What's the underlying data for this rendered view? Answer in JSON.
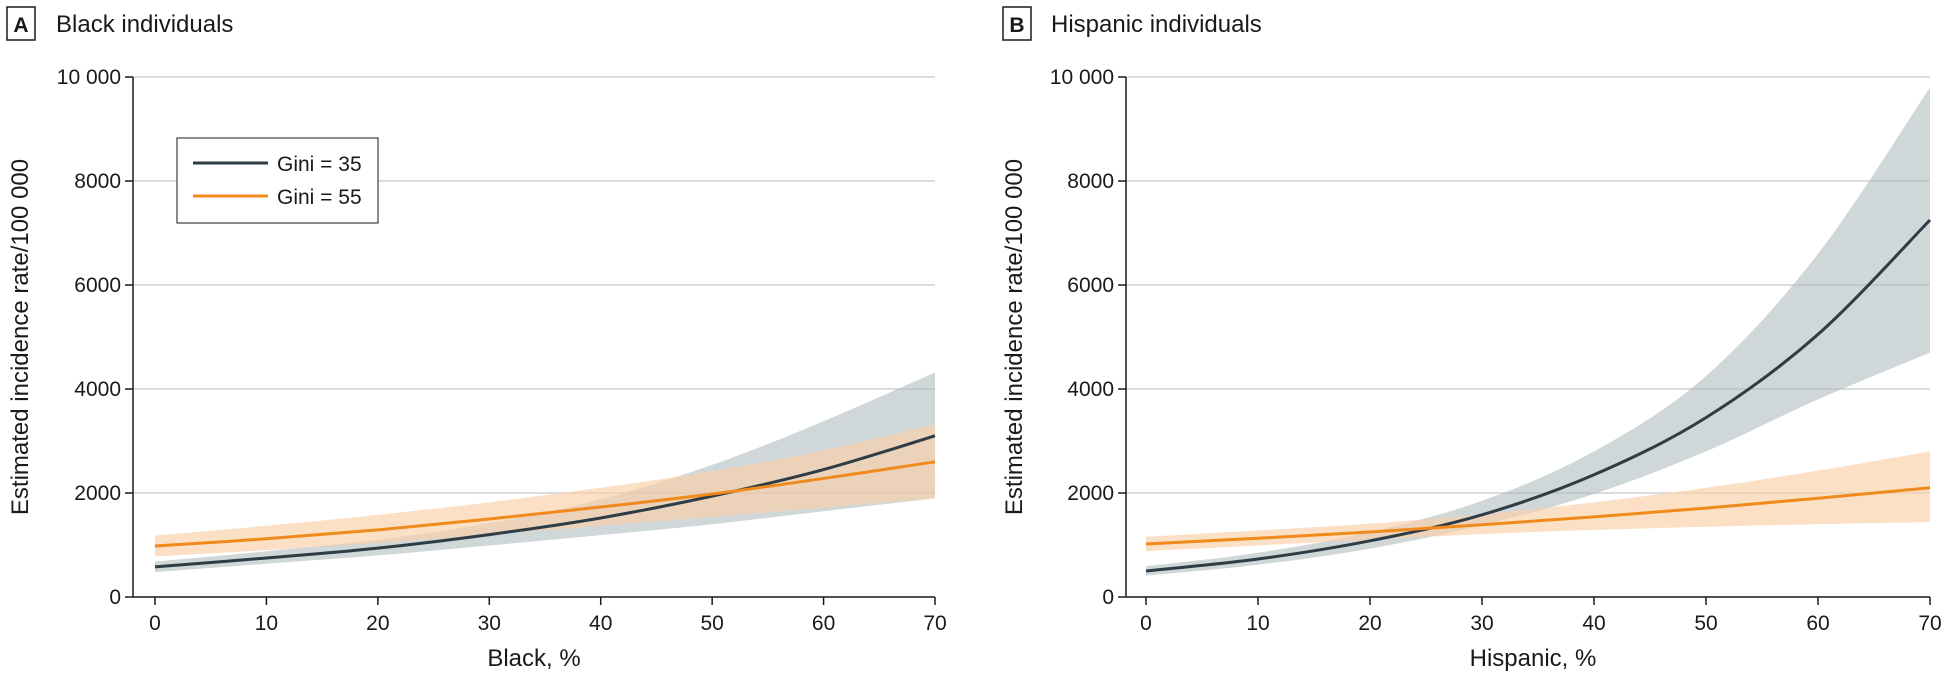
{
  "chart_data": [
    {
      "type": "line",
      "panel_label": "A",
      "title": "Black individuals",
      "xlabel": "Black, %",
      "ylabel": "Estimated incidence rate/100 000",
      "xlim": [
        0,
        70
      ],
      "ylim": [
        0,
        10000
      ],
      "x_ticks": [
        0,
        10,
        20,
        30,
        40,
        50,
        60,
        70
      ],
      "y_ticks": [
        0,
        2000,
        4000,
        6000,
        8000,
        10000
      ],
      "x_tick_labels": [
        "0",
        "10",
        "20",
        "30",
        "40",
        "50",
        "60",
        "70"
      ],
      "y_tick_labels": [
        "0",
        "2000",
        "4000",
        "6000",
        "8000",
        "10 000"
      ],
      "grid": "horizontal",
      "legend_position": "top-left",
      "x": [
        0,
        10,
        20,
        30,
        40,
        50,
        60,
        70
      ],
      "series": [
        {
          "name": "Gini = 35",
          "color": "#2e3d45",
          "band_color": "#a9b6ba",
          "values": [
            580,
            750,
            940,
            1200,
            1520,
            1940,
            2450,
            3100
          ],
          "lower": [
            480,
            640,
            800,
            990,
            1190,
            1400,
            1650,
            1900
          ],
          "upper": [
            680,
            880,
            1100,
            1420,
            1880,
            2540,
            3380,
            4320
          ]
        },
        {
          "name": "Gini = 55",
          "color": "#f08a1d",
          "band_color": "#fbd0a8",
          "values": [
            980,
            1120,
            1290,
            1500,
            1730,
            1980,
            2280,
            2600
          ],
          "lower": [
            780,
            900,
            1040,
            1200,
            1370,
            1540,
            1720,
            1900
          ],
          "upper": [
            1180,
            1370,
            1580,
            1820,
            2100,
            2420,
            2820,
            3320
          ]
        }
      ]
    },
    {
      "type": "line",
      "panel_label": "B",
      "title": "Hispanic individuals",
      "xlabel": "Hispanic, %",
      "ylabel": "Estimated incidence rate/100 000",
      "xlim": [
        0,
        70
      ],
      "ylim": [
        0,
        10000
      ],
      "x_ticks": [
        0,
        10,
        20,
        30,
        40,
        50,
        60,
        70
      ],
      "y_ticks": [
        0,
        2000,
        4000,
        6000,
        8000,
        10000
      ],
      "x_tick_labels": [
        "0",
        "10",
        "20",
        "30",
        "40",
        "50",
        "60",
        "70"
      ],
      "y_tick_labels": [
        "0",
        "2000",
        "4000",
        "6000",
        "8000",
        "10 000"
      ],
      "grid": "horizontal",
      "x": [
        0,
        10,
        20,
        30,
        40,
        50,
        60,
        70
      ],
      "series": [
        {
          "name": "Gini = 35",
          "color": "#2e3d45",
          "band_color": "#a9b6ba",
          "values": [
            500,
            730,
            1080,
            1580,
            2350,
            3450,
            5050,
            7250
          ],
          "lower": [
            410,
            620,
            930,
            1380,
            1980,
            2800,
            3800,
            4700
          ],
          "upper": [
            590,
            850,
            1250,
            1850,
            2800,
            4250,
            6600,
            9800
          ]
        },
        {
          "name": "Gini = 55",
          "color": "#f08a1d",
          "band_color": "#fbd0a8",
          "values": [
            1020,
            1130,
            1250,
            1390,
            1540,
            1710,
            1900,
            2100
          ],
          "lower": [
            880,
            990,
            1100,
            1210,
            1290,
            1350,
            1400,
            1440
          ],
          "upper": [
            1160,
            1280,
            1410,
            1590,
            1820,
            2100,
            2430,
            2800
          ]
        }
      ]
    }
  ]
}
